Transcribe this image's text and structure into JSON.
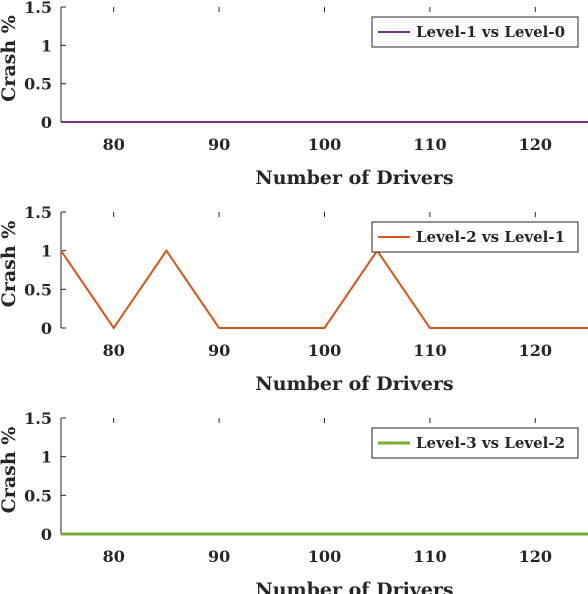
{
  "chart_data": [
    {
      "type": "line",
      "xlabel": "Number of Drivers",
      "ylabel": "Crash %",
      "xlim": [
        75,
        125
      ],
      "ylim": [
        0,
        1.5
      ],
      "xticks": [
        "80",
        "90",
        "100",
        "110",
        "120"
      ],
      "yticks": [
        "0",
        "0.5",
        "1",
        "1.5"
      ],
      "legend_position": "top-right",
      "series": [
        {
          "name": "Level-1 vs Level-0",
          "color": "#7e2f8e",
          "x": [
            75,
            80,
            85,
            90,
            95,
            100,
            105,
            110,
            115,
            120,
            125
          ],
          "y": [
            0,
            0,
            0,
            0,
            0,
            0,
            0,
            0,
            0,
            0,
            0
          ]
        }
      ]
    },
    {
      "type": "line",
      "xlabel": "Number of Drivers",
      "ylabel": "Crash %",
      "xlim": [
        75,
        125
      ],
      "ylim": [
        0,
        1.5
      ],
      "xticks": [
        "80",
        "90",
        "100",
        "110",
        "120"
      ],
      "yticks": [
        "0",
        "0.5",
        "1",
        "1.5"
      ],
      "legend_position": "top-right",
      "series": [
        {
          "name": "Level-2 vs Level-1",
          "color": "#d95319",
          "x": [
            75,
            80,
            85,
            90,
            95,
            100,
            105,
            110,
            115,
            120,
            125
          ],
          "y": [
            1,
            0,
            1,
            0,
            0,
            0,
            1,
            0,
            0,
            0,
            0
          ]
        }
      ]
    },
    {
      "type": "line",
      "xlabel": "Number of Drivers",
      "ylabel": "Crash %",
      "xlim": [
        75,
        125
      ],
      "ylim": [
        0,
        1.5
      ],
      "xticks": [
        "80",
        "90",
        "100",
        "110",
        "120"
      ],
      "yticks": [
        "0",
        "0.5",
        "1",
        "1.5"
      ],
      "legend_position": "top-right",
      "series": [
        {
          "name": "Level-3 vs Level-2",
          "color": "#77ac30",
          "x": [
            75,
            80,
            85,
            90,
            95,
            100,
            105,
            110,
            115,
            120,
            125
          ],
          "y": [
            0,
            0,
            0,
            0,
            0,
            0,
            0,
            0,
            0,
            0,
            0
          ]
        }
      ]
    }
  ]
}
